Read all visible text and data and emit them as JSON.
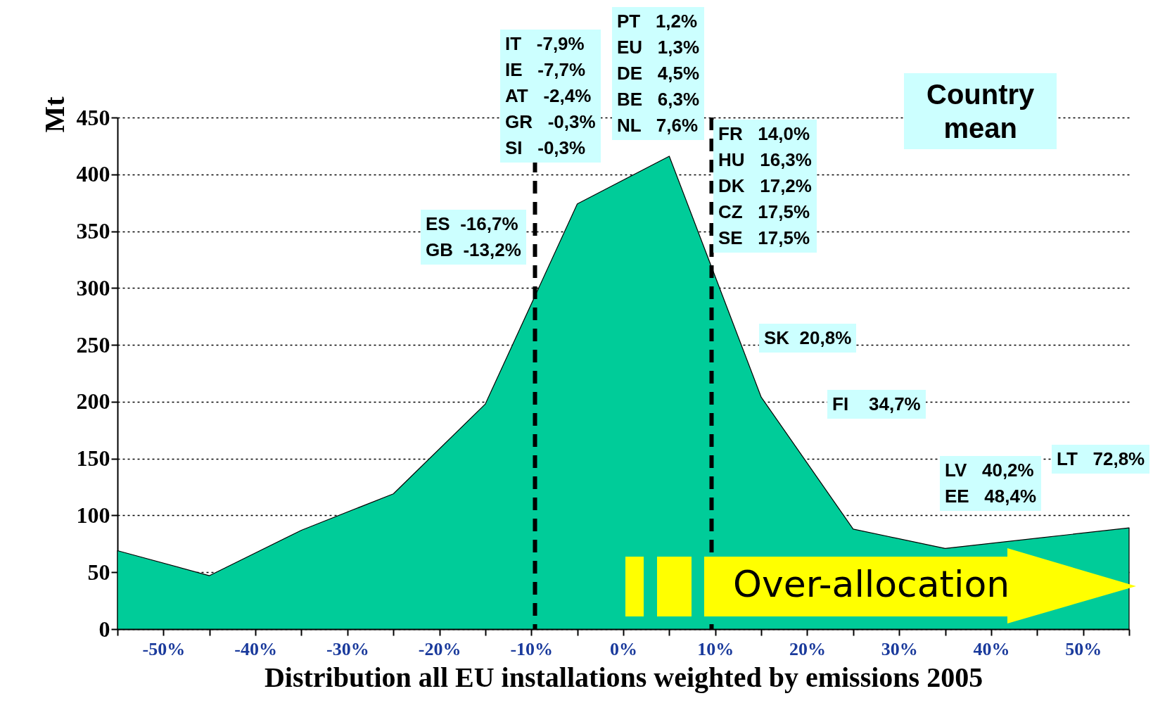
{
  "chart_data": {
    "type": "area",
    "xlabel": "Distribution all EU installations weighted by emissions 2005",
    "ylabel": "Mt",
    "x": [
      -55,
      -45,
      -35,
      -25,
      -15,
      -5,
      5,
      15,
      25,
      35,
      45,
      55
    ],
    "series": [
      {
        "color": "#00cc99",
        "values": [
          69,
          47,
          87,
          119,
          198,
          374,
          416,
          204,
          88,
          71,
          null,
          89
        ]
      }
    ],
    "xlim": [
      -55,
      55
    ],
    "xticks": [
      {
        "value": -55,
        "label": null
      },
      {
        "value": -50,
        "label": "-50%"
      },
      {
        "value": -45,
        "label": null
      },
      {
        "value": -40,
        "label": "-40%"
      },
      {
        "value": -35,
        "label": null
      },
      {
        "value": -30,
        "label": "-30%"
      },
      {
        "value": -25,
        "label": null
      },
      {
        "value": -20,
        "label": "-20%"
      },
      {
        "value": -15,
        "label": null
      },
      {
        "value": -10,
        "label": "-10%"
      },
      {
        "value": -5,
        "label": null
      },
      {
        "value": 0,
        "label": "0%"
      },
      {
        "value": 5,
        "label": null
      },
      {
        "value": 10,
        "label": "10%"
      },
      {
        "value": 15,
        "label": null
      },
      {
        "value": 20,
        "label": "20%"
      },
      {
        "value": 25,
        "label": null
      },
      {
        "value": 30,
        "label": "30%"
      },
      {
        "value": 35,
        "label": null
      },
      {
        "value": 40,
        "label": "40%"
      },
      {
        "value": 45,
        "label": null
      },
      {
        "value": 50,
        "label": "50%"
      },
      {
        "value": 55,
        "label": null
      }
    ],
    "ylim": [
      0,
      450
    ],
    "yticks": [
      0,
      50,
      100,
      150,
      200,
      250,
      300,
      350,
      400,
      450
    ],
    "grid": "y",
    "ref_lines": [
      {
        "axis": "x",
        "value": -9.6,
        "color": "#000000",
        "line_style": "dashed"
      },
      {
        "axis": "x",
        "value": 9.6,
        "color": "#000000",
        "line_style": "dashed"
      }
    ],
    "annotations": [
      "IT   -7,9%\nIE   -7,7%\nAT   -2,4%\nGR   -0,3%\nSI   -0,3%",
      "PT   1,2%\nEU   1,3%\nDE   4,5%\nBE   6,3%\nNL   7,6%",
      "ES  -16,7%\nGB  -13,2%",
      "FR   14,0%\nHU   16,3%\nDK   17,2%\nCZ   17,5%\nSE   17,5%",
      "SK  20,8%",
      "FI    34,7%",
      "LV   40,2%\nEE   48,4%",
      "LT   72,8%",
      "Country\nmean",
      "Over-allocation"
    ]
  }
}
